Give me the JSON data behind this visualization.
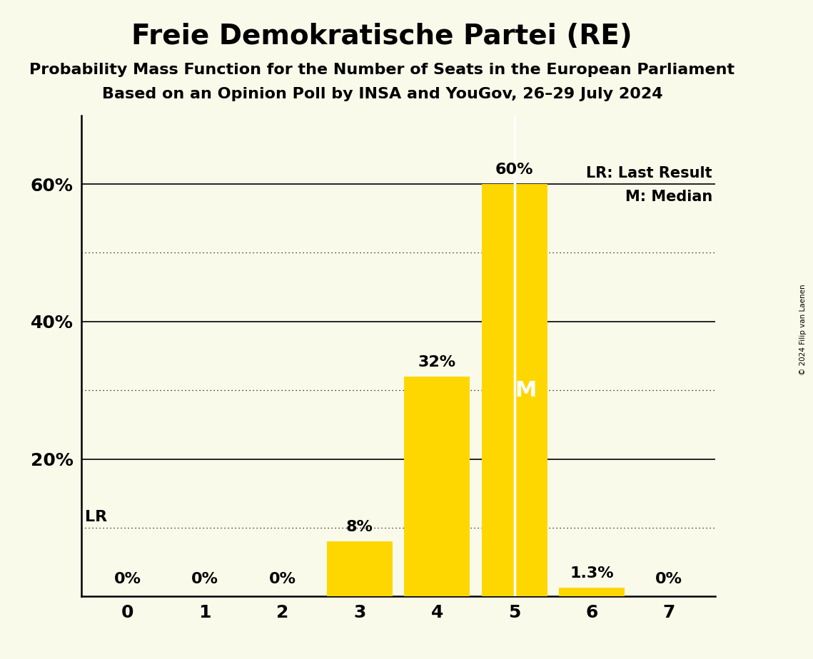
{
  "title": "Freie Demokratische Partei (RE)",
  "subtitle1": "Probability Mass Function for the Number of Seats in the European Parliament",
  "subtitle2": "Based on an Opinion Poll by INSA and YouGov, 26–29 July 2024",
  "copyright": "© 2024 Filip van Laenen",
  "categories": [
    0,
    1,
    2,
    3,
    4,
    5,
    6,
    7
  ],
  "values": [
    0.0,
    0.0,
    0.0,
    8.0,
    32.0,
    60.0,
    1.3,
    0.0
  ],
  "bar_color": "#FFD700",
  "background_color": "#FAFAEB",
  "bar_labels": [
    "0%",
    "0%",
    "0%",
    "8%",
    "32%",
    "60%",
    "1.3%",
    "0%"
  ],
  "median": 5,
  "last_result": 0,
  "ylim": [
    0,
    70
  ],
  "yticks": [
    20,
    40,
    60
  ],
  "yticklabels": [
    "20%",
    "40%",
    "60%"
  ],
  "solid_grid": [
    20,
    40,
    60
  ],
  "dotted_grid": [
    10,
    30,
    50
  ],
  "legend_lr": "LR: Last Result",
  "legend_m": "M: Median",
  "title_fontsize": 28,
  "subtitle_fontsize": 16,
  "bar_label_fontsize": 16,
  "axis_tick_fontsize": 18,
  "legend_fontsize": 15
}
